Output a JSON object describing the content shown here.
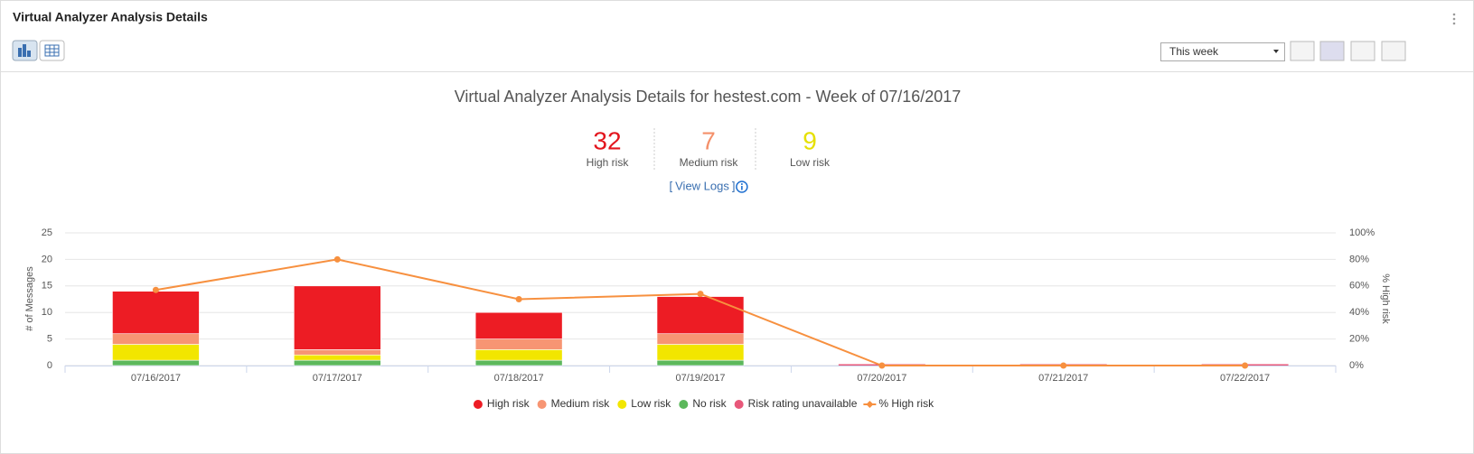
{
  "header": {
    "title": "Virtual Analyzer Analysis Details",
    "period": "This week"
  },
  "summary": {
    "items": [
      {
        "value": 32,
        "label": "High risk",
        "color": "#e3161e"
      },
      {
        "value": 7,
        "label": "Medium risk",
        "color": "#f4906a"
      },
      {
        "value": 9,
        "label": "Low risk",
        "color": "#e6e000"
      }
    ],
    "link_open": "[",
    "link": "View Logs",
    "link_close": "]"
  },
  "chart_data": {
    "type": "bar",
    "title": "Virtual Analyzer Analysis Details for hestest.com - Week of 07/16/2017",
    "y_label": "# of Messages",
    "y2_label": "% High risk",
    "categories": [
      "07/16/2017",
      "07/17/2017",
      "07/18/2017",
      "07/19/2017",
      "07/20/2017",
      "07/21/2017",
      "07/22/2017"
    ],
    "stacked": true,
    "series": [
      {
        "name": "High risk",
        "color": "#ed1c24",
        "values": [
          8,
          12,
          5,
          7,
          0,
          0,
          0
        ]
      },
      {
        "name": "Medium risk",
        "color": "#f79573",
        "values": [
          2,
          1,
          2,
          2,
          0,
          0,
          0
        ]
      },
      {
        "name": "Low risk",
        "color": "#f2e600",
        "values": [
          3,
          1,
          2,
          3,
          0,
          0,
          0
        ]
      },
      {
        "name": "No risk",
        "color": "#5cb85c",
        "values": [
          1,
          1,
          1,
          1,
          0,
          0,
          0
        ]
      },
      {
        "name": "Risk rating unavailable",
        "color": "#e8587a",
        "values": [
          0,
          0,
          0,
          0,
          0,
          0,
          0
        ]
      },
      {
        "name": "% High risk",
        "color": "#f7903f",
        "type": "line",
        "axis": "y2",
        "values": [
          57,
          80,
          50,
          54,
          0,
          0,
          0
        ]
      }
    ],
    "ylim": [
      0,
      25
    ],
    "yticks": [
      0,
      5,
      10,
      15,
      20,
      25
    ],
    "y2lim": [
      0,
      100
    ],
    "y2ticks": [
      {
        "value": 0,
        "label": "0%"
      },
      {
        "value": 20,
        "label": "20%"
      },
      {
        "value": 40,
        "label": "40%"
      },
      {
        "value": 60,
        "label": "60%"
      },
      {
        "value": 80,
        "label": "80%"
      },
      {
        "value": 100,
        "label": "100%"
      }
    ],
    "grid": true,
    "legend": "bottom"
  }
}
